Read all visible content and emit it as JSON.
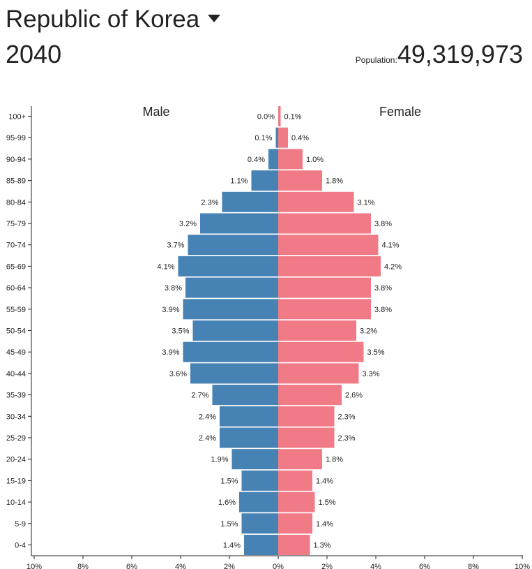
{
  "header": {
    "country": "Republic of Korea",
    "year": "2040",
    "population_label": "Population:",
    "population_value": "49,319,973"
  },
  "chart_data": {
    "type": "bar",
    "subtype": "population-pyramid",
    "categories": [
      "100+",
      "95-99",
      "90-94",
      "85-89",
      "80-84",
      "75-79",
      "70-74",
      "65-69",
      "60-64",
      "55-59",
      "50-54",
      "45-49",
      "40-44",
      "35-39",
      "30-34",
      "25-29",
      "20-24",
      "15-19",
      "10-14",
      "5-9",
      "0-4"
    ],
    "series": [
      {
        "name": "Male",
        "color": "#4682b4",
        "values": [
          0.0,
          0.1,
          0.4,
          1.1,
          2.3,
          3.2,
          3.7,
          4.1,
          3.8,
          3.9,
          3.5,
          3.9,
          3.6,
          2.7,
          2.4,
          2.4,
          1.9,
          1.5,
          1.6,
          1.5,
          1.4
        ],
        "labels": [
          "0.0%",
          "0.1%",
          "0.4%",
          "1.1%",
          "2.3%",
          "3.2%",
          "3.7%",
          "4.1%",
          "3.8%",
          "3.9%",
          "3.5%",
          "3.9%",
          "3.6%",
          "2.7%",
          "2.4%",
          "2.4%",
          "1.9%",
          "1.5%",
          "1.6%",
          "1.5%",
          "1.4%"
        ]
      },
      {
        "name": "Female",
        "color": "#f07b87",
        "values": [
          0.1,
          0.4,
          1.0,
          1.8,
          3.1,
          3.8,
          4.1,
          4.2,
          3.8,
          3.8,
          3.2,
          3.5,
          3.3,
          2.6,
          2.3,
          2.3,
          1.8,
          1.4,
          1.5,
          1.4,
          1.3
        ],
        "labels": [
          "0.1%",
          "0.4%",
          "1.0%",
          "1.8%",
          "3.1%",
          "3.8%",
          "4.1%",
          "4.2%",
          "3.8%",
          "3.8%",
          "3.2%",
          "3.5%",
          "3.3%",
          "2.6%",
          "2.3%",
          "2.3%",
          "1.8%",
          "1.4%",
          "1.5%",
          "1.4%",
          "1.3%"
        ]
      }
    ],
    "x_ticks": [
      "10%",
      "8%",
      "6%",
      "4%",
      "2%",
      "0%",
      "2%",
      "4%",
      "6%",
      "8%",
      "10%"
    ],
    "xlim": [
      -10,
      10
    ],
    "xlabel": "",
    "ylabel": "",
    "grid": false
  }
}
